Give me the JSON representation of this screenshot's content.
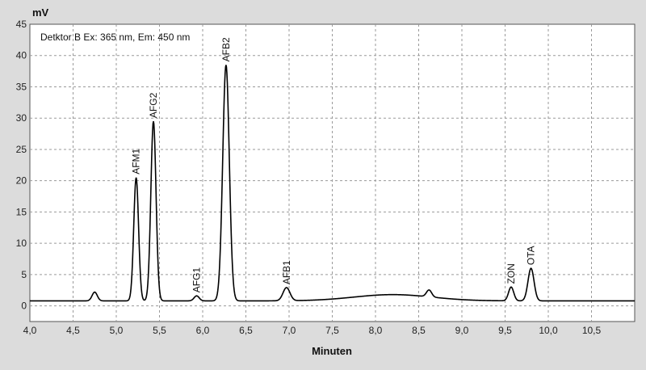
{
  "chart_data": {
    "type": "line",
    "ylabel": "mV",
    "xlabel": "Minuten",
    "annotation": "Detktor B Ex: 365 nm, Em: 450 nm",
    "xlim": [
      4.0,
      11.0
    ],
    "ylim": [
      -2.5,
      45
    ],
    "x_ticks": [
      "4,0",
      "4,5",
      "5,0",
      "5,5",
      "6,0",
      "6,5",
      "7,0",
      "7,5",
      "8,0",
      "8,5",
      "9,0",
      "9,5",
      "10,0",
      "10,5"
    ],
    "y_ticks": [
      "0",
      "5",
      "10",
      "15",
      "20",
      "25",
      "30",
      "35",
      "40",
      "45"
    ],
    "grid": true,
    "series": [
      {
        "baseline": 0.8,
        "color": "#000000",
        "peaks": [
          {
            "x": 4.75,
            "y": 2.2,
            "width": 0.03
          },
          {
            "x": 5.23,
            "y": 20.5,
            "width": 0.028,
            "label": "AFM1"
          },
          {
            "x": 5.43,
            "y": 29.5,
            "width": 0.03,
            "label": "AFG2"
          },
          {
            "x": 5.93,
            "y": 1.6,
            "width": 0.03,
            "label": "AFG1"
          },
          {
            "x": 6.27,
            "y": 38.5,
            "width": 0.038,
            "label": "AFB2"
          },
          {
            "x": 6.97,
            "y": 2.9,
            "width": 0.04,
            "label": "AFB1"
          },
          {
            "x": 8.62,
            "y": 1.9,
            "width": 0.03
          },
          {
            "x": 9.57,
            "y": 3.0,
            "width": 0.03,
            "label": "ZON"
          },
          {
            "x": 9.8,
            "y": 6.0,
            "width": 0.035,
            "label": "OTA"
          }
        ],
        "hump": {
          "x": 8.2,
          "y": 1.8,
          "width": 0.45
        }
      }
    ]
  }
}
